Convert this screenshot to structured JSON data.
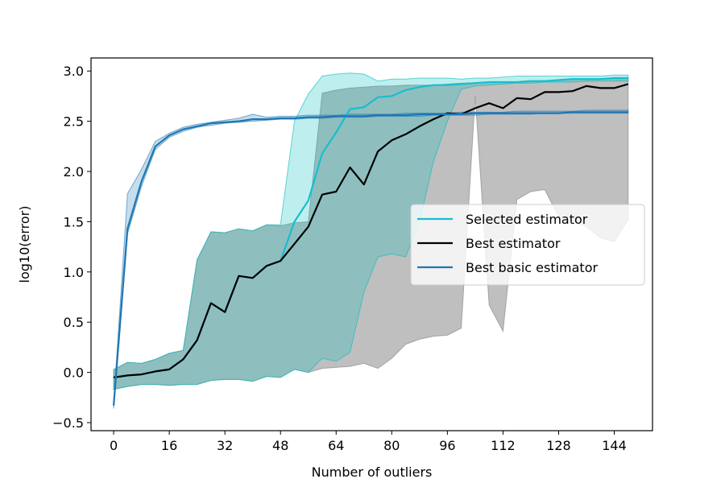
{
  "chart_data": {
    "type": "line",
    "title": "",
    "xlabel": "Number of outliers",
    "ylabel": "log10(error)",
    "xlim": [
      -6.5,
      155
    ],
    "ylim": [
      -0.58,
      3.13
    ],
    "xticks": [
      0,
      16,
      32,
      48,
      64,
      80,
      96,
      112,
      128,
      144
    ],
    "yticks": [
      -0.5,
      0.0,
      0.5,
      1.0,
      1.5,
      2.0,
      2.5,
      3.0
    ],
    "ytick_labels": [
      "−0.5",
      "0.0",
      "0.5",
      "1.0",
      "1.5",
      "2.0",
      "2.5",
      "3.0"
    ],
    "grid": false,
    "legend_position": "center-right",
    "bands": [
      {
        "name": "Best estimator band",
        "color": "#808080",
        "opacity": 0.5,
        "x": [
          0,
          4,
          8,
          12,
          16,
          20,
          24,
          28,
          32,
          36,
          40,
          44,
          48,
          52,
          56,
          60,
          64,
          68,
          72,
          76,
          80,
          84,
          88,
          92,
          96,
          100,
          104,
          108,
          112,
          116,
          120,
          124,
          128,
          132,
          136,
          140,
          144,
          148
        ],
        "upper": [
          0.03,
          0.1,
          0.09,
          0.13,
          0.19,
          0.22,
          1.12,
          1.4,
          1.39,
          1.43,
          1.41,
          1.47,
          1.46,
          1.49,
          1.5,
          2.78,
          2.81,
          2.83,
          2.84,
          2.85,
          2.85,
          2.86,
          2.86,
          2.86,
          2.87,
          2.88,
          2.88,
          2.89,
          2.89,
          2.89,
          2.9,
          2.9,
          2.91,
          2.92,
          2.92,
          2.92,
          2.93,
          2.93
        ],
        "lower": [
          -0.17,
          -0.14,
          -0.12,
          -0.12,
          -0.13,
          -0.12,
          -0.12,
          -0.08,
          -0.07,
          -0.07,
          -0.09,
          -0.04,
          -0.05,
          0.03,
          0.0,
          0.04,
          0.05,
          0.06,
          0.09,
          0.04,
          0.14,
          0.28,
          0.33,
          0.36,
          0.37,
          0.44,
          2.75,
          0.67,
          0.41,
          1.72,
          1.8,
          1.82,
          1.55,
          1.51,
          1.45,
          1.34,
          1.3,
          1.52
        ]
      },
      {
        "name": "Selected estimator band",
        "color": "#00bcbc",
        "opacity": 0.25,
        "x": [
          0,
          4,
          8,
          12,
          16,
          20,
          24,
          28,
          32,
          36,
          40,
          44,
          48,
          52,
          56,
          60,
          64,
          68,
          72,
          76,
          80,
          84,
          88,
          92,
          96,
          100,
          104,
          108,
          112,
          116,
          120,
          124,
          128,
          132,
          136,
          140,
          144,
          148
        ],
        "upper": [
          0.03,
          0.1,
          0.09,
          0.13,
          0.19,
          0.22,
          1.12,
          1.4,
          1.39,
          1.43,
          1.41,
          1.47,
          1.47,
          2.5,
          2.77,
          2.95,
          2.97,
          2.98,
          2.97,
          2.9,
          2.92,
          2.92,
          2.93,
          2.93,
          2.93,
          2.92,
          2.93,
          2.93,
          2.94,
          2.95,
          2.95,
          2.95,
          2.95,
          2.95,
          2.95,
          2.95,
          2.96,
          2.96
        ],
        "lower": [
          -0.17,
          -0.14,
          -0.12,
          -0.12,
          -0.13,
          -0.12,
          -0.12,
          -0.08,
          -0.07,
          -0.07,
          -0.09,
          -0.04,
          -0.05,
          0.03,
          0.0,
          0.14,
          0.11,
          0.2,
          0.8,
          1.15,
          1.18,
          1.15,
          1.5,
          2.1,
          2.5,
          2.82,
          2.85,
          2.86,
          2.87,
          2.88,
          2.88,
          2.89,
          2.89,
          2.89,
          2.9,
          2.9,
          2.9,
          2.9
        ]
      },
      {
        "name": "Best basic estimator band",
        "color": "#1f77b4",
        "opacity": 0.25,
        "x": [
          0,
          4,
          8,
          12,
          16,
          20,
          24,
          28,
          32,
          36,
          40,
          44,
          48,
          52,
          56,
          60,
          64,
          68,
          72,
          76,
          80,
          84,
          88,
          92,
          96,
          100,
          104,
          108,
          112,
          116,
          120,
          124,
          128,
          132,
          136,
          140,
          144,
          148
        ],
        "upper": [
          -0.3,
          1.78,
          2.02,
          2.3,
          2.38,
          2.44,
          2.47,
          2.49,
          2.51,
          2.53,
          2.57,
          2.54,
          2.55,
          2.55,
          2.56,
          2.56,
          2.56,
          2.57,
          2.57,
          2.57,
          2.57,
          2.58,
          2.58,
          2.58,
          2.58,
          2.59,
          2.59,
          2.59,
          2.59,
          2.6,
          2.6,
          2.6,
          2.6,
          2.6,
          2.61,
          2.61,
          2.61,
          2.61
        ],
        "lower": [
          -0.36,
          1.38,
          1.85,
          2.22,
          2.34,
          2.4,
          2.44,
          2.46,
          2.48,
          2.49,
          2.5,
          2.51,
          2.52,
          2.52,
          2.53,
          2.53,
          2.54,
          2.54,
          2.54,
          2.55,
          2.55,
          2.55,
          2.55,
          2.56,
          2.56,
          2.56,
          2.56,
          2.57,
          2.57,
          2.57,
          2.57,
          2.58,
          2.58,
          2.58,
          2.58,
          2.58,
          2.58,
          2.58
        ]
      }
    ],
    "series": [
      {
        "name": "Selected estimator",
        "color": "#17becf",
        "x": [
          0,
          4,
          8,
          12,
          16,
          20,
          24,
          28,
          32,
          36,
          40,
          44,
          48,
          52,
          56,
          60,
          64,
          68,
          72,
          76,
          80,
          84,
          88,
          92,
          96,
          100,
          104,
          108,
          112,
          116,
          120,
          124,
          128,
          132,
          136,
          140,
          144,
          148
        ],
        "y": [
          -0.05,
          -0.03,
          -0.02,
          0.01,
          0.03,
          0.13,
          0.32,
          0.69,
          0.6,
          0.96,
          0.94,
          1.06,
          1.11,
          1.5,
          1.71,
          2.18,
          2.39,
          2.62,
          2.64,
          2.74,
          2.75,
          2.81,
          2.84,
          2.86,
          2.86,
          2.87,
          2.88,
          2.89,
          2.89,
          2.89,
          2.9,
          2.9,
          2.91,
          2.92,
          2.92,
          2.92,
          2.93,
          2.93
        ]
      },
      {
        "name": "Best estimator",
        "color": "#000000",
        "x": [
          0,
          4,
          8,
          12,
          16,
          20,
          24,
          28,
          32,
          36,
          40,
          44,
          48,
          52,
          56,
          60,
          64,
          68,
          72,
          76,
          80,
          84,
          88,
          92,
          96,
          100,
          104,
          108,
          112,
          116,
          120,
          124,
          128,
          132,
          136,
          140,
          144,
          148
        ],
        "y": [
          -0.05,
          -0.03,
          -0.02,
          0.01,
          0.03,
          0.13,
          0.32,
          0.69,
          0.6,
          0.96,
          0.94,
          1.06,
          1.11,
          1.28,
          1.45,
          1.77,
          1.8,
          2.04,
          1.87,
          2.2,
          2.31,
          2.37,
          2.45,
          2.52,
          2.58,
          2.57,
          2.63,
          2.68,
          2.63,
          2.73,
          2.72,
          2.79,
          2.79,
          2.8,
          2.85,
          2.83,
          2.83,
          2.87
        ]
      },
      {
        "name": "Best basic estimator",
        "color": "#1f77b4",
        "x": [
          0,
          4,
          8,
          12,
          16,
          20,
          24,
          28,
          32,
          36,
          40,
          44,
          48,
          52,
          56,
          60,
          64,
          68,
          72,
          76,
          80,
          84,
          88,
          92,
          96,
          100,
          104,
          108,
          112,
          116,
          120,
          124,
          128,
          132,
          136,
          140,
          144,
          148
        ],
        "y": [
          -0.33,
          1.43,
          1.9,
          2.25,
          2.36,
          2.42,
          2.45,
          2.48,
          2.49,
          2.5,
          2.52,
          2.52,
          2.53,
          2.53,
          2.54,
          2.54,
          2.55,
          2.55,
          2.55,
          2.56,
          2.56,
          2.56,
          2.57,
          2.57,
          2.57,
          2.57,
          2.58,
          2.58,
          2.58,
          2.58,
          2.58,
          2.58,
          2.58,
          2.59,
          2.59,
          2.59,
          2.59,
          2.59
        ]
      }
    ],
    "legend": [
      "Selected estimator",
      "Best estimator",
      "Best basic estimator"
    ]
  }
}
